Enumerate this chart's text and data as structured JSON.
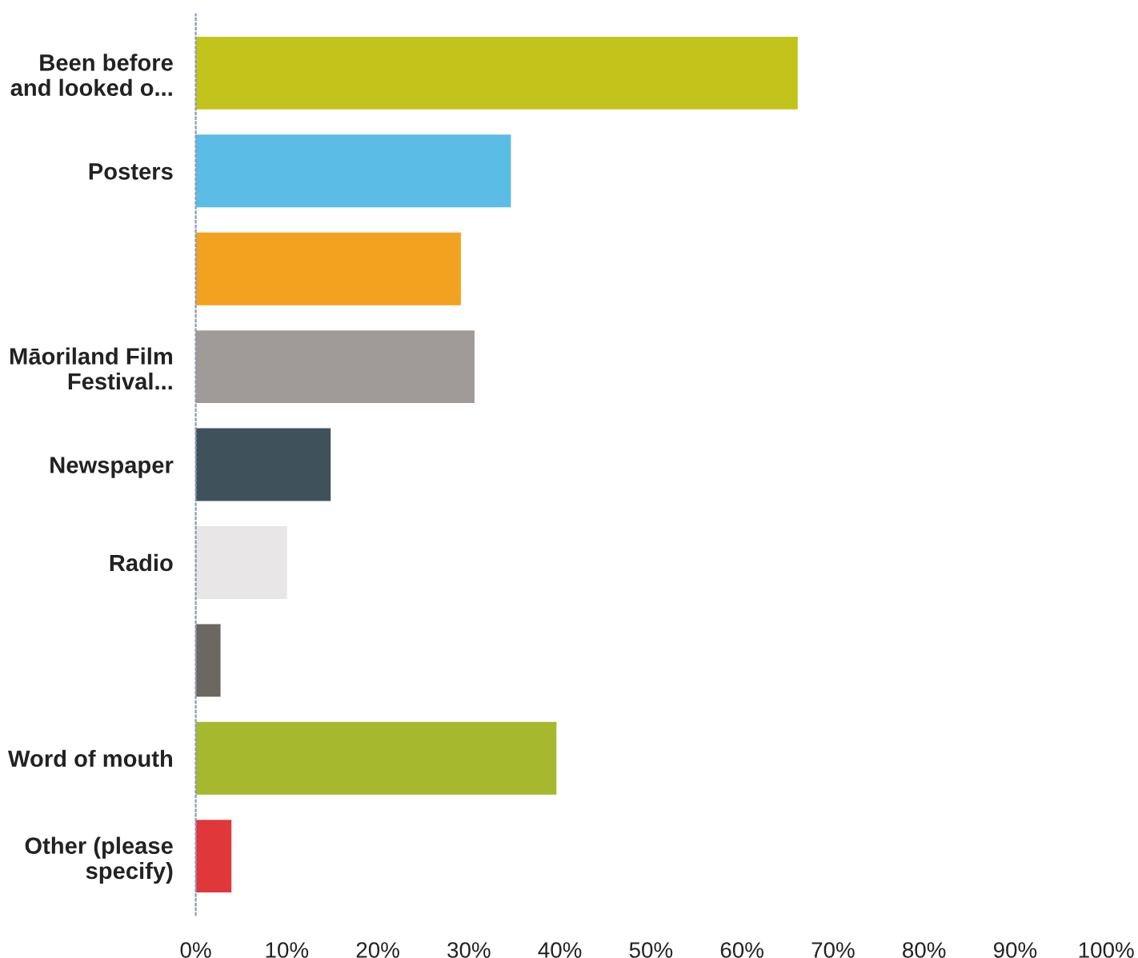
{
  "chart_data": {
    "type": "bar",
    "orientation": "horizontal",
    "categories": [
      "Been before\nand looked o...",
      "Posters",
      null,
      "Māoriland Film\nFestival...",
      "Newspaper",
      "Radio",
      null,
      "Word of mouth",
      "Other (please\nspecify)"
    ],
    "values": [
      66,
      34.5,
      29,
      30.5,
      14.7,
      9.9,
      2.6,
      39.5,
      3.8
    ],
    "colors": [
      "#c2c41c",
      "#5bbde6",
      "#f2a21e",
      "#a09a98",
      "#3f525c",
      "#e8e6e6",
      "#6b6862",
      "#a6b82e",
      "#e0383a"
    ],
    "xlim": [
      0,
      100
    ],
    "xticks": [
      {
        "value": 0,
        "label": "0%"
      },
      {
        "value": 10,
        "label": "10%"
      },
      {
        "value": 20,
        "label": "20%"
      },
      {
        "value": 30,
        "label": "30%"
      },
      {
        "value": 40,
        "label": "40%"
      },
      {
        "value": 50,
        "label": "50%"
      },
      {
        "value": 60,
        "label": "60%"
      },
      {
        "value": 70,
        "label": "70%"
      },
      {
        "value": 80,
        "label": "80%"
      },
      {
        "value": 90,
        "label": "90%"
      },
      {
        "value": 100,
        "label": "100%"
      }
    ],
    "grid": false,
    "legend": false
  }
}
